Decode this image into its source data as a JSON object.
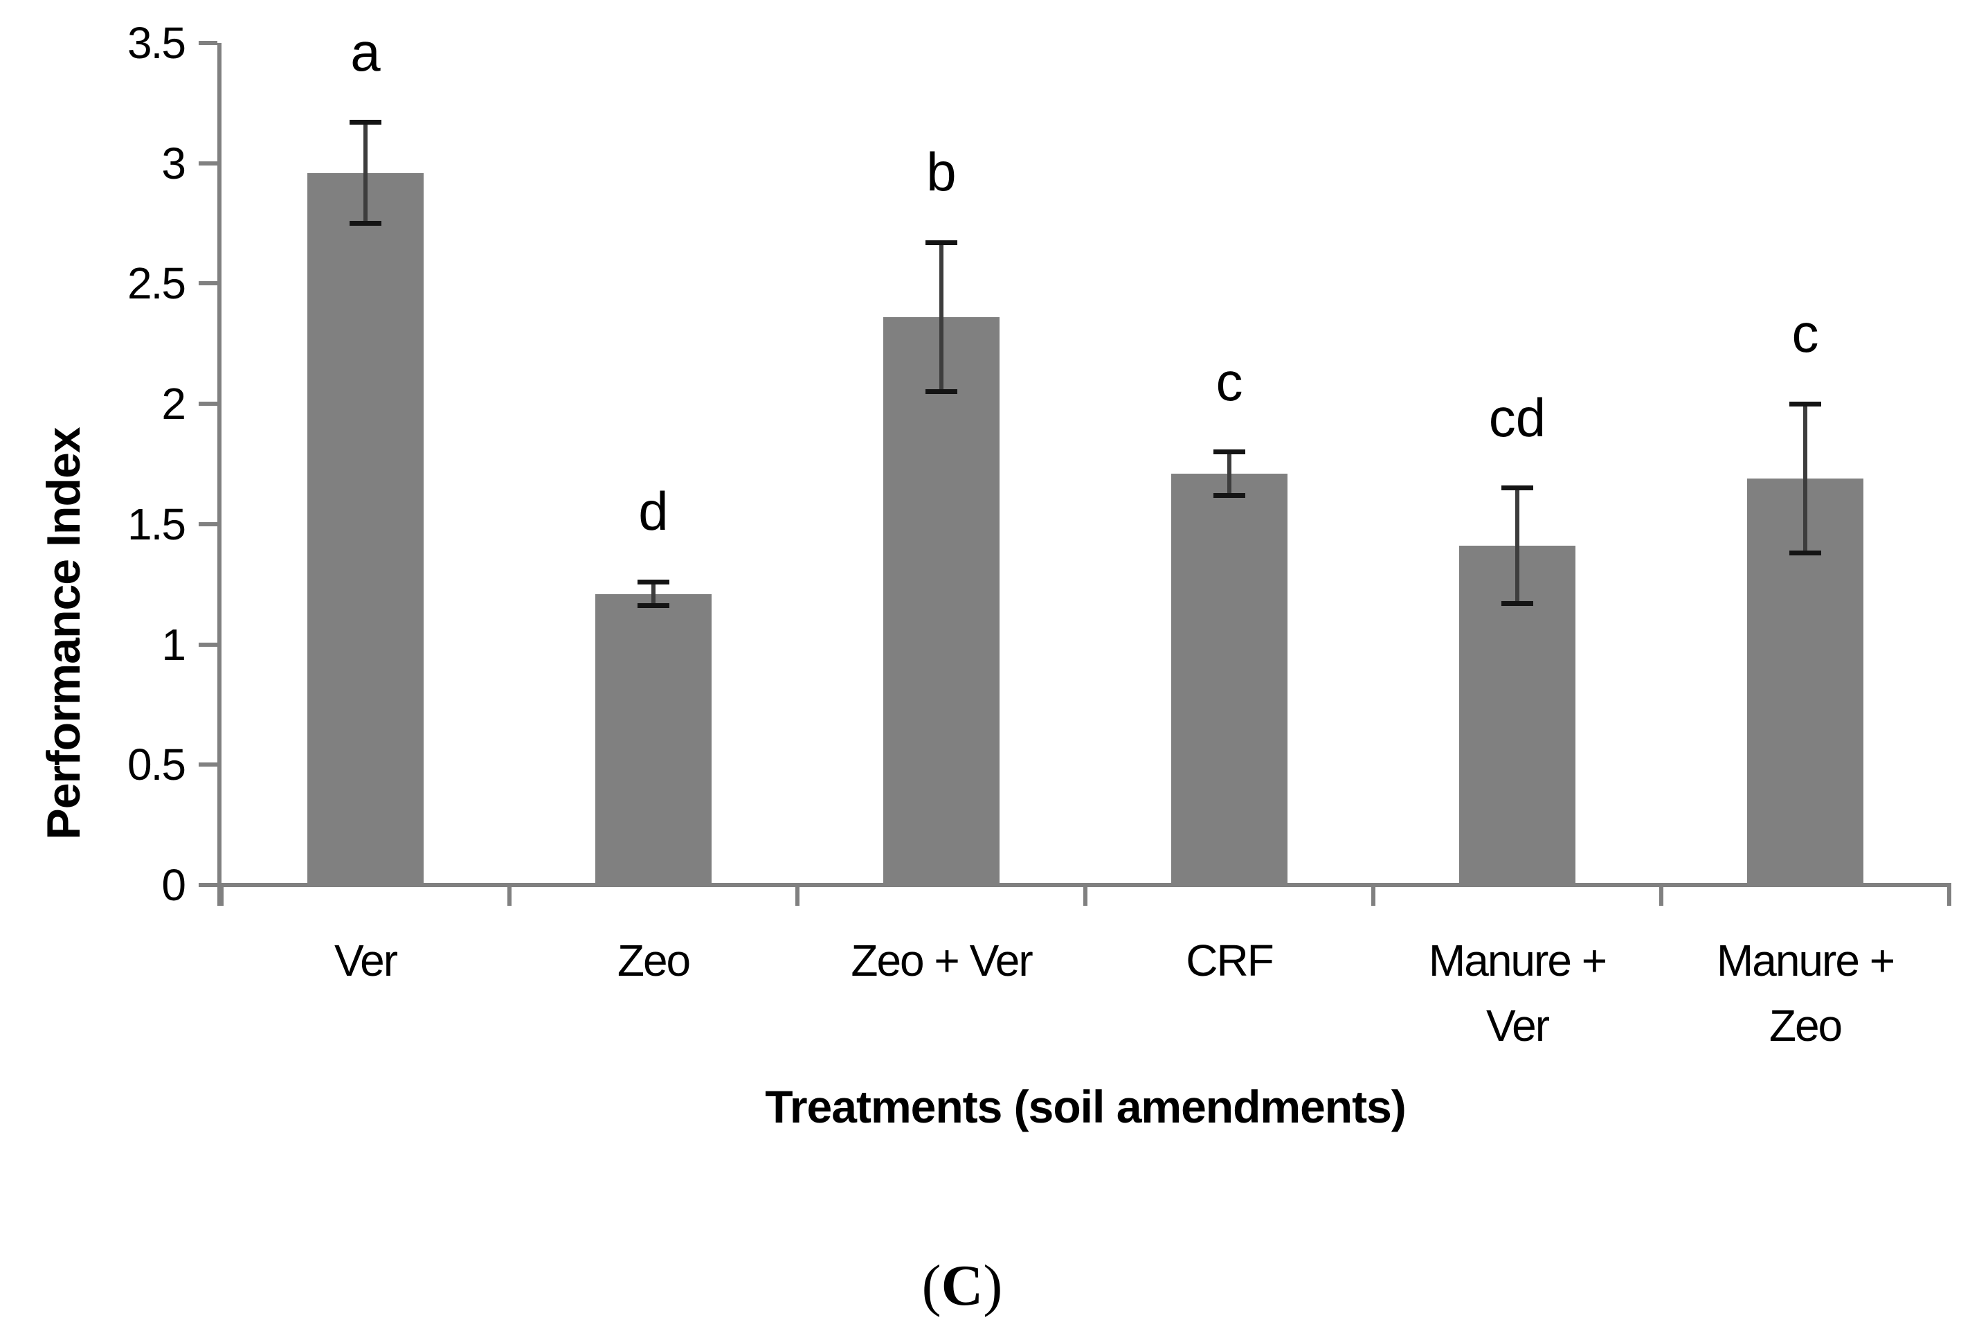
{
  "figure": {
    "caption_open": "(",
    "caption_letter": "C",
    "caption_close": ")"
  },
  "chart_data": {
    "type": "bar",
    "title": "",
    "xlabel": "Treatments (soil amendments)",
    "ylabel": "Performance Index",
    "ylim": [
      0,
      3.5
    ],
    "ytick_step": 0.5,
    "ytick_labels": [
      "0",
      "0.5",
      "1",
      "1.5",
      "2",
      "2.5",
      "3",
      "3.5"
    ],
    "grid": false,
    "legend": "none",
    "bar_color": "#808080",
    "axis_color": "#808080",
    "error_cap_color": "#141414",
    "error_stem_color": "#3d3d3d",
    "categories": [
      "Ver",
      "Zeo",
      "Zeo + Ver",
      "CRF",
      "Manure + Ver",
      "Manure + Zeo"
    ],
    "category_label_lines": [
      [
        "Ver"
      ],
      [
        "Zeo"
      ],
      [
        "Zeo + Ver"
      ],
      [
        "CRF"
      ],
      [
        "Manure +",
        "Ver"
      ],
      [
        "Manure +",
        "Zeo"
      ]
    ],
    "values": [
      2.96,
      1.21,
      2.36,
      1.71,
      1.41,
      1.69
    ],
    "errors": [
      0.21,
      0.05,
      0.31,
      0.09,
      0.24,
      0.31
    ],
    "sig_letters": [
      "a",
      "d",
      "b",
      "c",
      "cd",
      "c"
    ]
  }
}
